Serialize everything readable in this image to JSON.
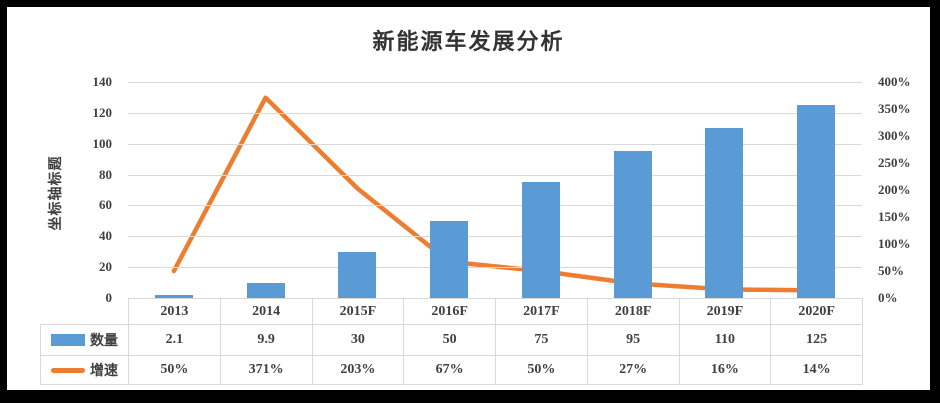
{
  "title": "新能源车发展分析",
  "axis": {
    "left_title": "坐标轴标题",
    "left_ticks": [
      "140",
      "120",
      "100",
      "80",
      "60",
      "40",
      "20",
      "0"
    ],
    "right_ticks": [
      "400%",
      "350%",
      "300%",
      "250%",
      "200%",
      "150%",
      "100%",
      "50%",
      "0%"
    ]
  },
  "colors": {
    "bar": "#5B9BD5",
    "line": "#ED7D31",
    "grid": "#D9D9D9",
    "text": "#404040",
    "frame": "#000000"
  },
  "chart_data": {
    "type": "bar",
    "subtype": "combo-bar-line",
    "title": "新能源车发展分析",
    "categories": [
      "2013",
      "2014",
      "2015F",
      "2016F",
      "2017F",
      "2018F",
      "2019F",
      "2020F"
    ],
    "series": [
      {
        "name": "数量",
        "type": "bar",
        "axis": "left",
        "color": "#5B9BD5",
        "values": [
          2.1,
          9.9,
          30,
          50,
          75,
          95,
          110,
          125
        ],
        "display": [
          "2.1",
          "9.9",
          "30",
          "50",
          "75",
          "95",
          "110",
          "125"
        ]
      },
      {
        "name": "增速",
        "type": "line",
        "axis": "right",
        "color": "#ED7D31",
        "values_percent": [
          50,
          371,
          203,
          67,
          50,
          27,
          16,
          14
        ],
        "display": [
          "50%",
          "371%",
          "203%",
          "67%",
          "50%",
          "27%",
          "16%",
          "14%"
        ]
      }
    ],
    "left_axis": {
      "title": "坐标轴标题",
      "min": 0,
      "max": 140,
      "step": 20
    },
    "right_axis": {
      "min": 0,
      "max": 400,
      "step": 50,
      "unit": "%"
    },
    "grid": true,
    "legend_position": "table-left"
  }
}
